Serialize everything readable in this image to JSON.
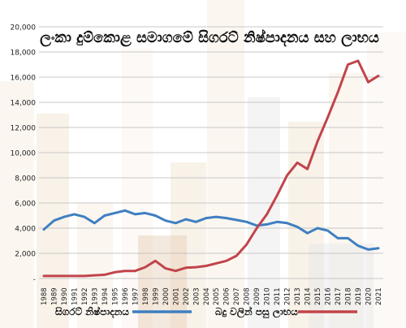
{
  "chart_data": {
    "type": "line",
    "title": "ලංකා දුම්කොළ සමාගමේ සිගරට් නිෂ්පාදනය සහ ලාභය",
    "xlabel": "",
    "ylabel": "",
    "ylim": [
      0,
      20000
    ],
    "yticks": [
      "-",
      "2,000",
      "4,000",
      "6,000",
      "8,000",
      "10,000",
      "12,000",
      "14,000",
      "16,000",
      "18,000",
      "20,000"
    ],
    "grid": true,
    "legend_position": "bottom",
    "x": [
      "1988",
      "1989",
      "1990",
      "1991",
      "1992",
      "1993",
      "1994",
      "1995",
      "1996",
      "1997",
      "1998",
      "1999",
      "2000",
      "2001",
      "2002",
      "2003",
      "2004",
      "2005",
      "2006",
      "2007",
      "2008",
      "2009",
      "2010",
      "2011",
      "2012",
      "2013",
      "2014",
      "2015",
      "2016",
      "2017",
      "2018",
      "2019",
      "2020",
      "2021"
    ],
    "series": [
      {
        "name": "සිගරට් නිෂ්පාදනය",
        "color": "#3f7fc1",
        "values": [
          3900,
          4600,
          4900,
          5100,
          4900,
          4400,
          5000,
          5200,
          5400,
          5100,
          5200,
          5000,
          4600,
          4400,
          4700,
          4500,
          4800,
          4900,
          4800,
          4650,
          4500,
          4200,
          4300,
          4500,
          4400,
          4100,
          3600,
          4000,
          3800,
          3200,
          3200,
          2600,
          2300,
          2400
        ]
      },
      {
        "name": "බදු වලින් පසු ලාභය",
        "color": "#c1444a",
        "values": [
          200,
          200,
          200,
          200,
          200,
          250,
          300,
          500,
          600,
          600,
          900,
          1400,
          800,
          600,
          850,
          900,
          1000,
          1200,
          1400,
          1800,
          2700,
          4000,
          5100,
          6600,
          8200,
          9200,
          8700,
          10900,
          12800,
          14800,
          17000,
          17300,
          15600,
          16100
        ]
      }
    ]
  },
  "colors": {
    "background_stripes": [
      "#f1e2cc",
      "#e9d3b3",
      "#f5ece1",
      "#dcdcdc",
      "#d9b48e"
    ]
  }
}
